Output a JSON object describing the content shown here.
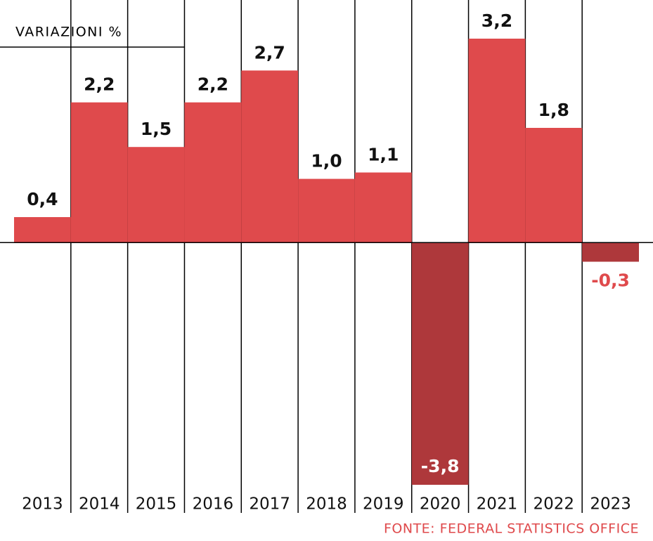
{
  "chart_data": {
    "type": "bar",
    "y_label": "VARIAZIONI %",
    "source": "FONTE: FEDERAL STATISTICS OFFICE",
    "categories": [
      "2013",
      "2014",
      "2015",
      "2016",
      "2017",
      "2018",
      "2019",
      "2020",
      "2021",
      "2022",
      "2023"
    ],
    "values": [
      0.4,
      2.2,
      1.5,
      2.2,
      2.7,
      1.0,
      1.1,
      -3.8,
      3.2,
      1.8,
      -0.3
    ],
    "value_labels": [
      "0,4",
      "2,2",
      "1,5",
      "2,2",
      "2,7",
      "1,0",
      "1,1",
      "-3,8",
      "3,2",
      "1,8",
      "-0,3"
    ],
    "color": "#df4a4c",
    "negative_color": "#ae383b"
  }
}
